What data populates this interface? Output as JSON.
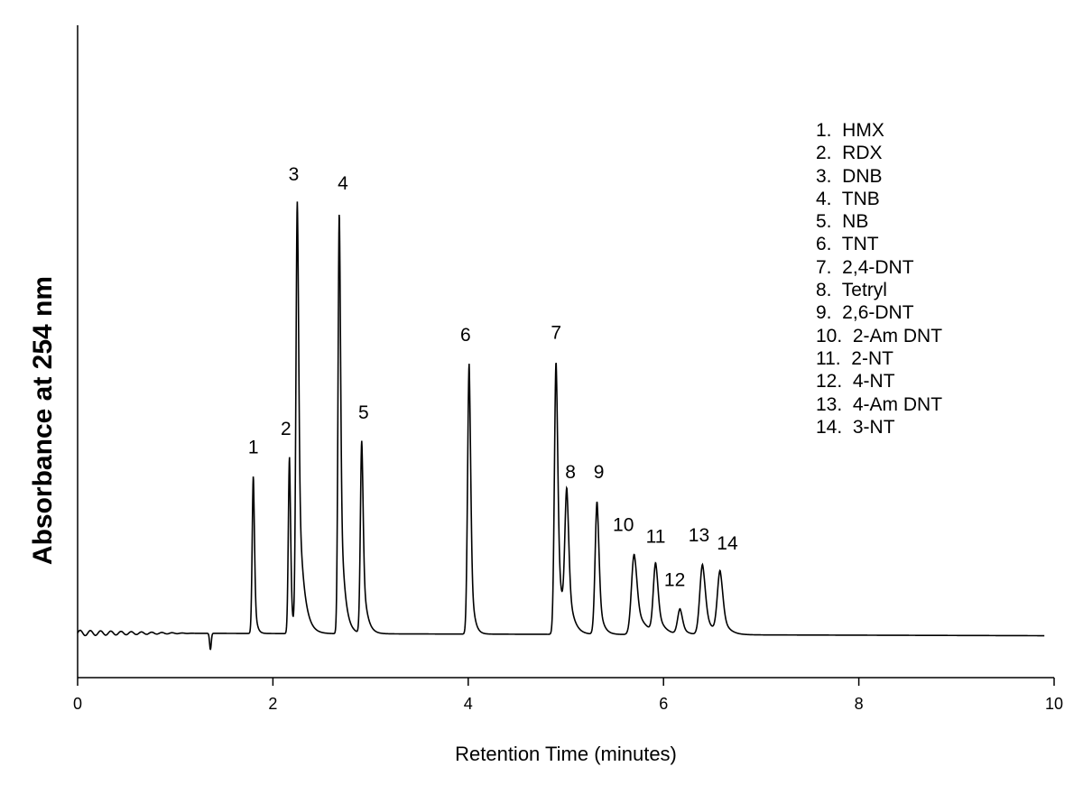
{
  "chart_data": {
    "type": "line",
    "title": "",
    "xlabel": "Retention Time (minutes)",
    "ylabel": "Absorbance at 254 nm",
    "xlim": [
      0,
      10
    ],
    "ylim": [
      0,
      1.0
    ],
    "x_ticks": [
      "0",
      "2",
      "4",
      "6",
      "8",
      "10"
    ],
    "grid": false,
    "legend_placement": "top-right",
    "line_color": "#000000",
    "baseline": 0.06,
    "peaks": [
      {
        "label": "1",
        "x": 1.8,
        "y": 0.405
      },
      {
        "label": "2",
        "x": 2.17,
        "y": 0.445
      },
      {
        "label": "3",
        "x": 2.25,
        "y": 1.0
      },
      {
        "label": "4",
        "x": 2.68,
        "y": 0.98
      },
      {
        "label": "5",
        "x": 2.91,
        "y": 0.48
      },
      {
        "label": "6",
        "x": 4.01,
        "y": 0.65
      },
      {
        "label": "7",
        "x": 4.9,
        "y": 0.655
      },
      {
        "label": "8",
        "x": 5.01,
        "y": 0.35
      },
      {
        "label": "9",
        "x": 5.32,
        "y": 0.35
      },
      {
        "label": "10",
        "x": 5.7,
        "y": 0.235
      },
      {
        "label": "11",
        "x": 5.92,
        "y": 0.21
      },
      {
        "label": "12",
        "x": 6.17,
        "y": 0.115
      },
      {
        "label": "13",
        "x": 6.4,
        "y": 0.213
      },
      {
        "label": "14",
        "x": 6.58,
        "y": 0.195
      }
    ],
    "legend": [
      "1.  HMX",
      "2.  RDX",
      "3.  DNB",
      "4.  TNB",
      "5.  NB",
      "6.  TNT",
      "7.  2,4-DNT",
      "8.  Tetryl",
      "9.  2,6-DNT",
      "10.  2-Am DNT",
      "11.  2-NT",
      "12.  4-NT",
      "13.  4-Am DNT",
      "14.  3-NT"
    ]
  }
}
